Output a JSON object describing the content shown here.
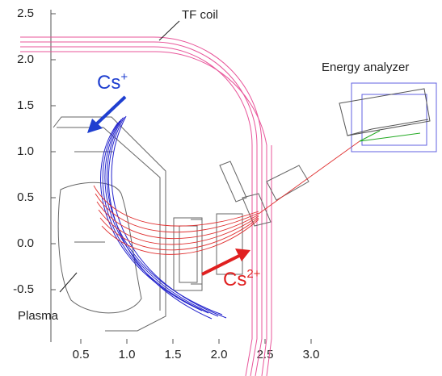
{
  "axes": {
    "xticks": [
      0.5,
      {
        "value": 1,
        "label": "1.0"
      },
      1.5,
      {
        "value": 2,
        "label": "2.0"
      },
      2.5,
      {
        "value": 3,
        "label": "3.0"
      }
    ],
    "yticks": [
      2.5,
      {
        "value": 2,
        "label": "2.0"
      },
      1.5,
      {
        "value": 1,
        "label": "1.0"
      },
      0.5,
      {
        "value": 0,
        "label": "0.0"
      },
      -0.5
    ]
  },
  "labels": {
    "tf_coil": "TF coil",
    "energy_analyzer": "Energy analyzer",
    "cs_plus": {
      "base": "Cs",
      "sup": "+"
    },
    "cs_2plus": {
      "base": "Cs",
      "sup": "2+"
    },
    "plasma": "Plasma"
  }
}
